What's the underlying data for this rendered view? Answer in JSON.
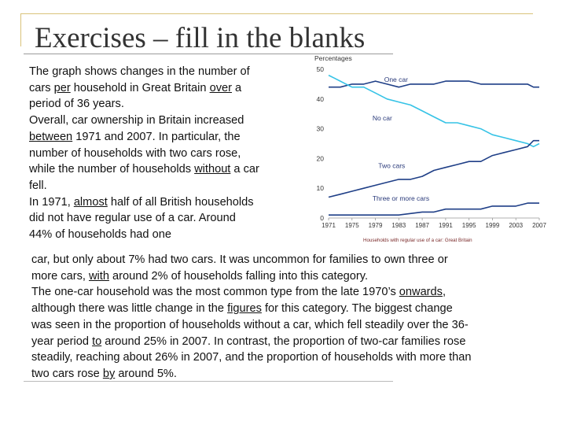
{
  "slide": {
    "title": "Exercises – fill in the blanks"
  },
  "text_left": [
    [
      "The graph shows changes in the number of"
    ],
    [
      "cars ",
      {
        "u": "per"
      },
      " household in Great Britain ",
      {
        "u": "over"
      },
      " a"
    ],
    [
      "period of 36 years."
    ],
    [
      "Overall, car ownership in Britain increased"
    ],
    [
      {
        "u": "between"
      },
      " 1971 and 2007. In particular, the"
    ],
    [
      "number of households with two cars rose,"
    ],
    [
      "while the number of households ",
      {
        "u": "without"
      },
      " a car"
    ],
    [
      "fell."
    ],
    [
      "In 1971, ",
      {
        "u": "almost"
      },
      " half of all British households"
    ],
    [
      "did not have regular use of a car. Around"
    ],
    [
      "44% of households had one"
    ]
  ],
  "text_wide": [
    [
      "car, but only about 7% had two cars. It was uncommon for families to own three or"
    ],
    [
      "more cars, ",
      {
        "u": "with"
      },
      " around 2% of households falling into this category."
    ],
    [
      "The one-car household was the most common type from the late 1970’s ",
      {
        "u": "onwards"
      },
      ","
    ],
    [
      "although there was little change in the ",
      {
        "u": "figures"
      },
      " for this category. The biggest change"
    ],
    [
      "was seen in the proportion of households without a car, which fell steadily over the 36-"
    ],
    [
      "year period ",
      {
        "u": "to"
      },
      " around 25% in 2007. In contrast, the proportion of two-car families rose"
    ],
    [
      "steadily, reaching about 26% in 2007, and the proportion of households with more than"
    ],
    [
      "two cars rose ",
      {
        "u": "by"
      },
      " around 5%."
    ]
  ],
  "chart_data": {
    "type": "line",
    "ylabel": "Percentages",
    "ylim": [
      0,
      50
    ],
    "yticks": [
      "0",
      "10",
      "20",
      "30",
      "40",
      "50"
    ],
    "xlim": [
      1971,
      2007
    ],
    "xticks": [
      "1971",
      "1975",
      "1979",
      "1983",
      "1987",
      "1991",
      "1995",
      "1999",
      "2003",
      "2007"
    ],
    "caption": "Households with regular use of a car: Great Britain",
    "colors": {
      "one": "#1f3f87",
      "none": "#36c3e6",
      "axis": "#999999",
      "label": "#2a3a7a",
      "caption": "#7a2a2a"
    },
    "series": [
      {
        "name": "One car",
        "key": "one",
        "x": [
          1971,
          1973,
          1975,
          1977,
          1979,
          1981,
          1983,
          1985,
          1987,
          1989,
          1991,
          1993,
          1995,
          1997,
          1999,
          2001,
          2003,
          2005,
          2006,
          2007
        ],
        "values": [
          44,
          44,
          45,
          45,
          46,
          45,
          44,
          45,
          45,
          45,
          46,
          46,
          46,
          45,
          45,
          45,
          45,
          45,
          44,
          44
        ]
      },
      {
        "name": "No car",
        "key": "none",
        "x": [
          1971,
          1972,
          1973,
          1974,
          1975,
          1977,
          1979,
          1981,
          1983,
          1985,
          1987,
          1989,
          1991,
          1993,
          1995,
          1997,
          1999,
          2001,
          2003,
          2005,
          2006,
          2007
        ],
        "values": [
          48,
          47,
          46,
          45,
          44,
          44,
          42,
          40,
          39,
          38,
          36,
          34,
          32,
          32,
          31,
          30,
          28,
          27,
          26,
          25,
          24,
          25
        ]
      },
      {
        "name": "Two cars",
        "key": "one",
        "x": [
          1971,
          1973,
          1975,
          1977,
          1979,
          1981,
          1983,
          1985,
          1987,
          1989,
          1991,
          1993,
          1995,
          1997,
          1999,
          2001,
          2003,
          2005,
          2006,
          2007
        ],
        "values": [
          7,
          8,
          9,
          10,
          11,
          12,
          13,
          13,
          14,
          16,
          17,
          18,
          19,
          19,
          21,
          22,
          23,
          24,
          26,
          26
        ]
      },
      {
        "name": "Three or more cars",
        "key": "one",
        "x": [
          1971,
          1975,
          1979,
          1983,
          1987,
          1989,
          1991,
          1993,
          1995,
          1997,
          1999,
          2001,
          2003,
          2005,
          2007
        ],
        "values": [
          1,
          1,
          1,
          1,
          2,
          2,
          3,
          3,
          3,
          3,
          4,
          4,
          4,
          5,
          5
        ]
      }
    ],
    "annotations": [
      {
        "text": "One car",
        "x": 1980.5,
        "y": 45.8
      },
      {
        "text": "No car",
        "x": 1978.5,
        "y": 32.8
      },
      {
        "text": "Two cars",
        "x": 1979.5,
        "y": 16.8
      },
      {
        "text": "Three or more cars",
        "x": 1978.5,
        "y": 5.8
      }
    ]
  }
}
